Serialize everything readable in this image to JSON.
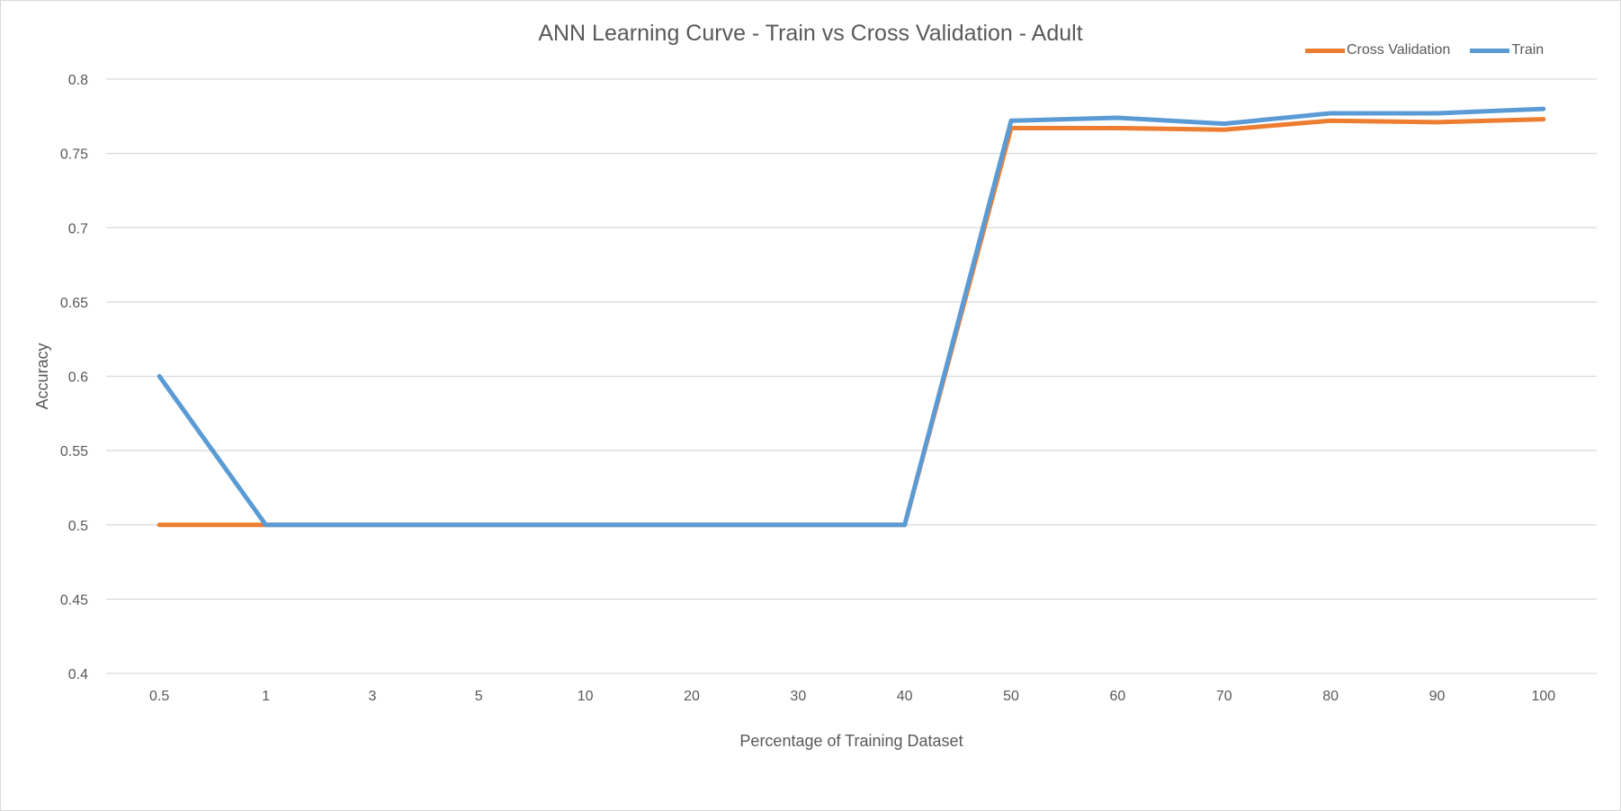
{
  "chart_data": {
    "type": "line",
    "title": "ANN Learning Curve - Train vs Cross Validation - Adult",
    "xlabel": "Percentage of Training Dataset",
    "ylabel": "Accuracy",
    "categories": [
      "0.5",
      "1",
      "3",
      "5",
      "10",
      "20",
      "30",
      "40",
      "50",
      "60",
      "70",
      "80",
      "90",
      "100"
    ],
    "ylim": [
      0.4,
      0.8
    ],
    "yticks": [
      "0.4",
      "0.45",
      "0.5",
      "0.55",
      "0.6",
      "0.65",
      "0.7",
      "0.75",
      "0.8"
    ],
    "grid": true,
    "legend_position": "top-right",
    "series": [
      {
        "name": "Cross Validation",
        "color": "#ed7d31",
        "values": [
          0.5,
          0.5,
          0.5,
          0.5,
          0.5,
          0.5,
          0.5,
          0.5,
          0.767,
          0.767,
          0.766,
          0.772,
          0.771,
          0.773
        ]
      },
      {
        "name": "Train",
        "color": "#5b9bd5",
        "values": [
          0.6,
          0.5,
          0.5,
          0.5,
          0.5,
          0.5,
          0.5,
          0.5,
          0.772,
          0.774,
          0.77,
          0.777,
          0.777,
          0.78
        ]
      }
    ]
  }
}
